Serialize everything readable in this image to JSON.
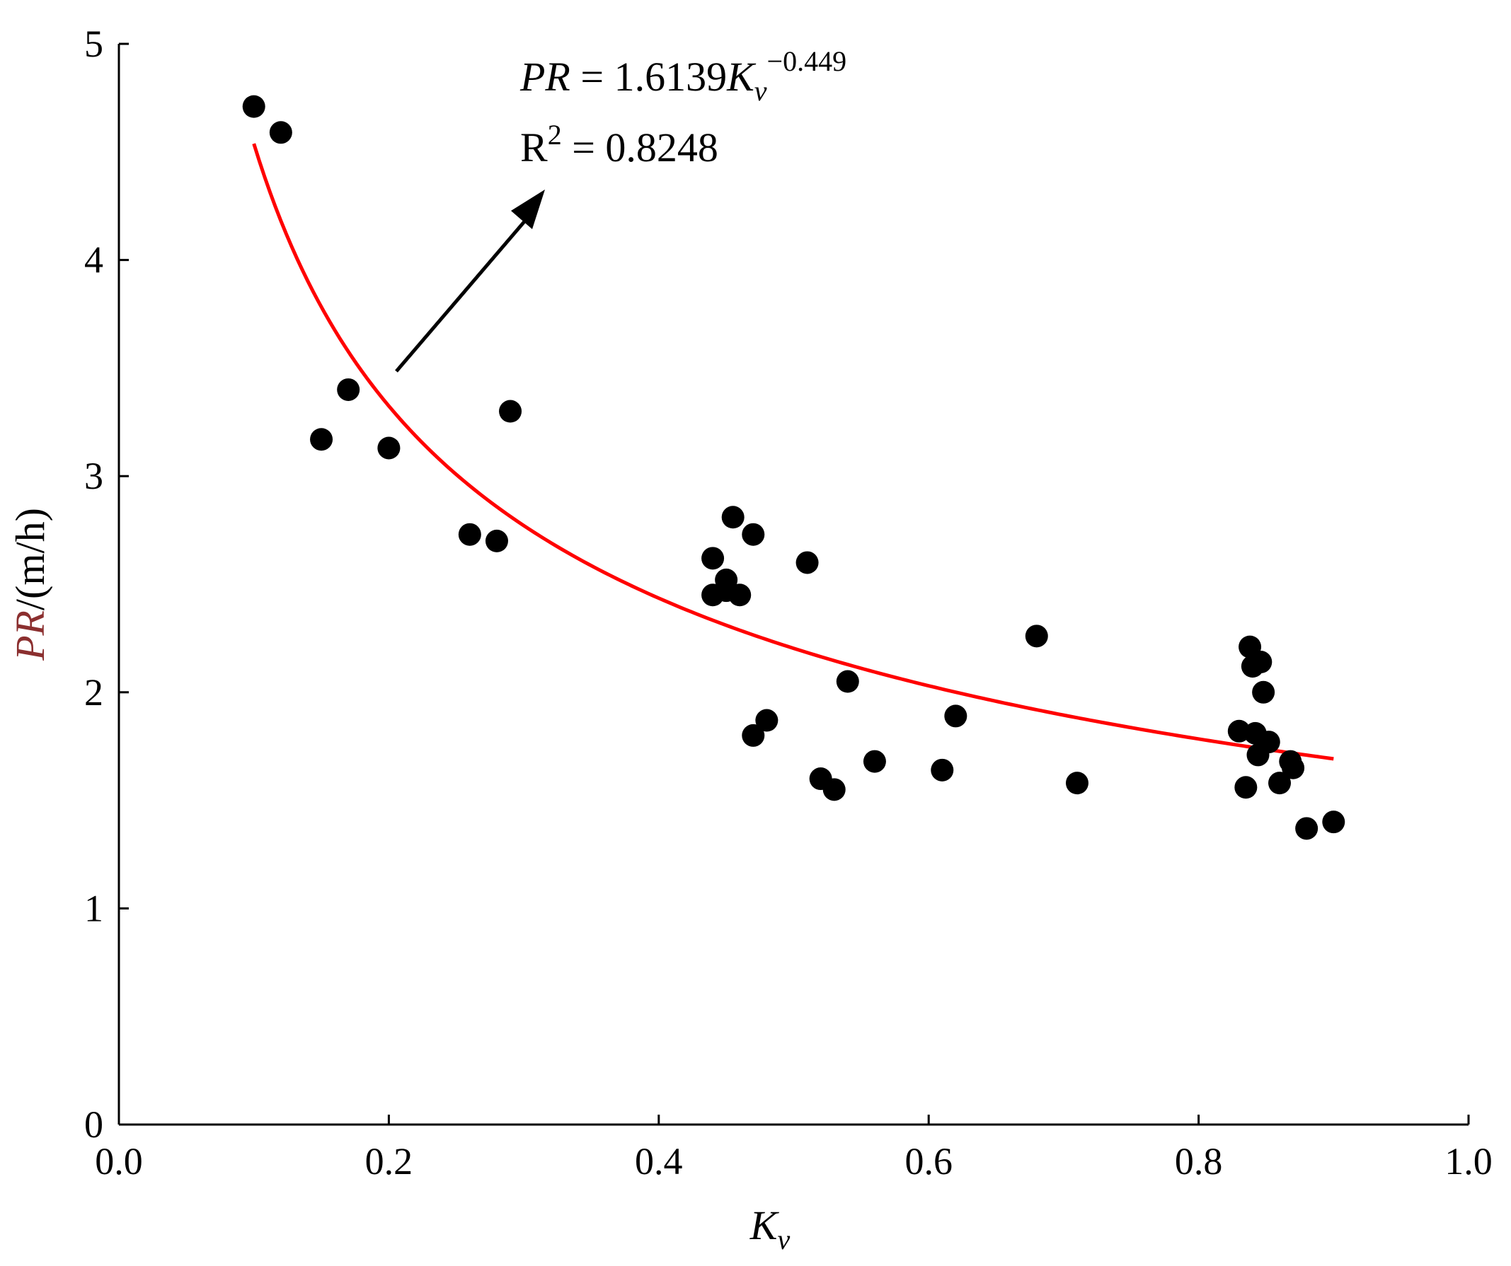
{
  "chart_data": {
    "type": "scatter",
    "xlabel": {
      "base": "K",
      "sub": "v"
    },
    "ylabel": {
      "italic": "PR",
      "rest": "/(m/h)"
    },
    "xlim": [
      0.0,
      1.0
    ],
    "ylim": [
      0,
      5
    ],
    "xticks": [
      "0.0",
      "0.2",
      "0.4",
      "0.6",
      "0.8",
      "1.0"
    ],
    "yticks": [
      "0",
      "1",
      "2",
      "3",
      "4",
      "5"
    ],
    "points": [
      [
        0.1,
        4.71
      ],
      [
        0.12,
        4.59
      ],
      [
        0.15,
        3.17
      ],
      [
        0.17,
        3.4
      ],
      [
        0.2,
        3.13
      ],
      [
        0.26,
        2.73
      ],
      [
        0.28,
        2.7
      ],
      [
        0.29,
        3.3
      ],
      [
        0.44,
        2.62
      ],
      [
        0.44,
        2.45
      ],
      [
        0.45,
        2.52
      ],
      [
        0.45,
        2.47
      ],
      [
        0.455,
        2.81
      ],
      [
        0.46,
        2.45
      ],
      [
        0.47,
        2.73
      ],
      [
        0.47,
        1.8
      ],
      [
        0.48,
        1.87
      ],
      [
        0.51,
        2.6
      ],
      [
        0.52,
        1.6
      ],
      [
        0.53,
        1.55
      ],
      [
        0.54,
        2.05
      ],
      [
        0.56,
        1.68
      ],
      [
        0.61,
        1.64
      ],
      [
        0.62,
        1.89
      ],
      [
        0.68,
        2.26
      ],
      [
        0.71,
        1.58
      ],
      [
        0.83,
        1.82
      ],
      [
        0.835,
        1.56
      ],
      [
        0.838,
        2.21
      ],
      [
        0.84,
        2.12
      ],
      [
        0.842,
        1.81
      ],
      [
        0.844,
        1.71
      ],
      [
        0.846,
        2.14
      ],
      [
        0.848,
        2.0
      ],
      [
        0.852,
        1.77
      ],
      [
        0.86,
        1.58
      ],
      [
        0.868,
        1.68
      ],
      [
        0.87,
        1.65
      ],
      [
        0.88,
        1.37
      ],
      [
        0.9,
        1.4
      ]
    ],
    "fit": {
      "coefficient": 1.6139,
      "exponent": -0.449,
      "x_range": [
        0.1,
        0.9
      ],
      "color": "#ff0000"
    },
    "annotation": {
      "equation": {
        "lhs": "PR",
        "eq": " = 1.6139",
        "var": "K",
        "sub": "v",
        "sup": "−0.449"
      },
      "r2": {
        "base": "R",
        "sup": "2",
        "rest": " = 0.8248"
      }
    },
    "point_color": "#000000",
    "grid": false
  }
}
